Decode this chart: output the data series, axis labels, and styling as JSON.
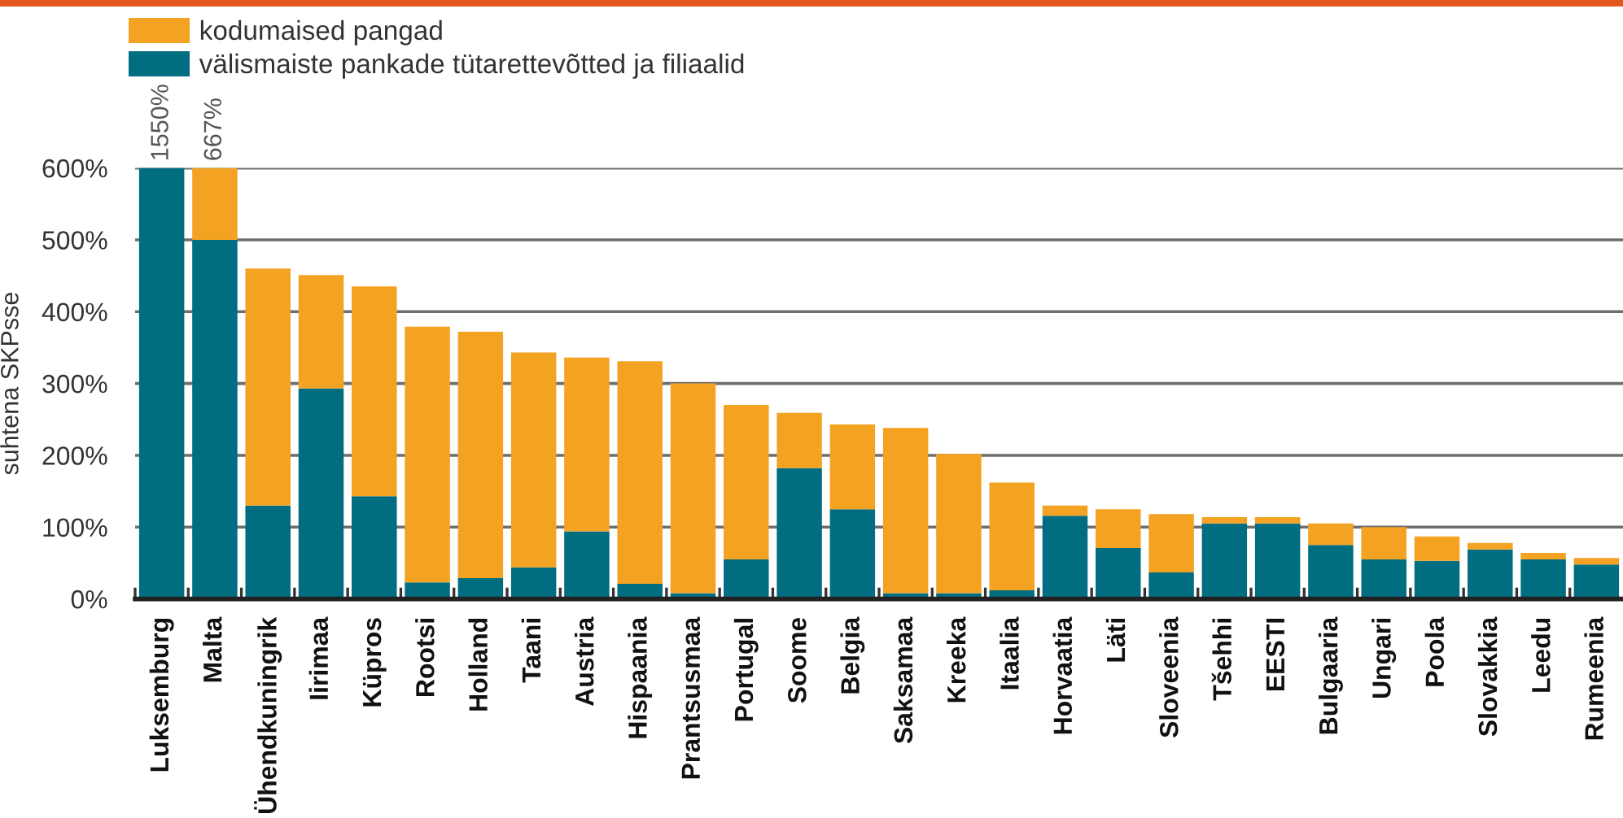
{
  "chart_data": {
    "type": "bar",
    "stacked": true,
    "ylabel": "suhtena SKPsse",
    "categories": [
      "Luksemburg",
      "Malta",
      "Ühendkuningrik",
      "Iirimaa",
      "Küpros",
      "Rootsi",
      "Holland",
      "Taani",
      "Austria",
      "Hispaania",
      "Prantsusmaa",
      "Portugal",
      "Soome",
      "Belgia",
      "Saksamaa",
      "Kreeka",
      "Itaalia",
      "Horvaatia",
      "Läti",
      "Sloveenia",
      "Tšehhi",
      "EESTI",
      "Bulgaaria",
      "Ungari",
      "Poola",
      "Slovakkia",
      "Leedu",
      "Rumeenia"
    ],
    "series": [
      {
        "name": "välismaiste pankade tütarettevõtted ja filiaalid",
        "color": "#006d80",
        "values": [
          600,
          500,
          130,
          293,
          143,
          23,
          29,
          44,
          94,
          21,
          8,
          55,
          182,
          125,
          8,
          8,
          12,
          116,
          71,
          37,
          105,
          105,
          75,
          55,
          53,
          69,
          55,
          48
        ]
      },
      {
        "name": "kodumaised pangad",
        "color": "#f4a221",
        "values": [
          0,
          100,
          330,
          158,
          292,
          356,
          343,
          299,
          242,
          310,
          292,
          215,
          77,
          118,
          230,
          194,
          150,
          14,
          54,
          81,
          9,
          9,
          30,
          45,
          34,
          9,
          9,
          9
        ]
      }
    ],
    "ylim": [
      0,
      600
    ],
    "yticks": [
      {
        "value": 0,
        "label": "0%"
      },
      {
        "value": 100,
        "label": "100%"
      },
      {
        "value": 200,
        "label": "200%"
      },
      {
        "value": 300,
        "label": "300%"
      },
      {
        "value": 400,
        "label": "400%"
      },
      {
        "value": 500,
        "label": "500%"
      },
      {
        "value": 600,
        "label": "600%"
      }
    ],
    "grid": "y",
    "legend": "top left",
    "annotations": [
      {
        "text": "1550%",
        "x": "Luksemburg",
        "y": 600
      },
      {
        "text": "667%",
        "x": "Malta",
        "y": 600
      }
    ]
  }
}
